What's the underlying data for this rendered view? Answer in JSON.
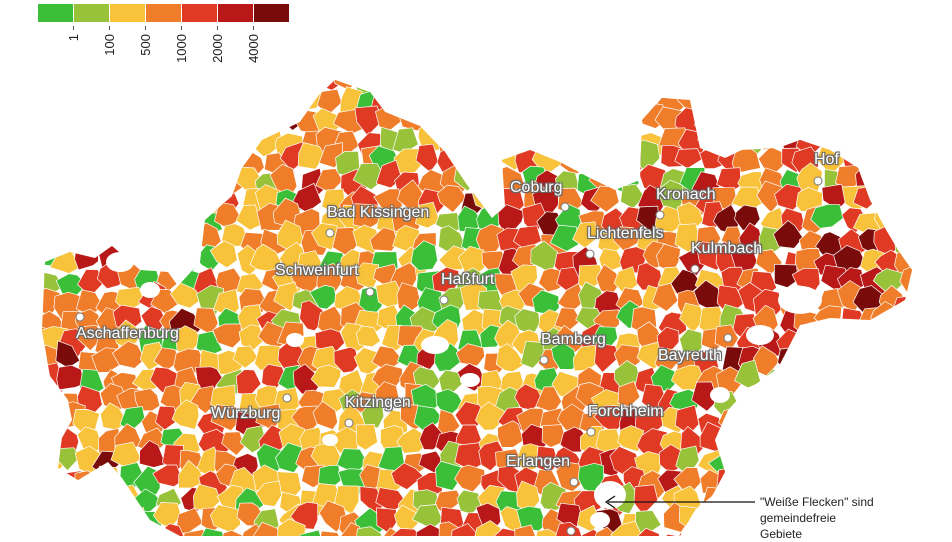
{
  "legend": {
    "items": [
      {
        "color": "#3cbf38",
        "label": "1"
      },
      {
        "color": "#97c23a",
        "label": "100"
      },
      {
        "color": "#f8c23a",
        "label": "500"
      },
      {
        "color": "#ef7d2a",
        "label": "1000"
      },
      {
        "color": "#e03a25",
        "label": "2000"
      },
      {
        "color": "#b81818",
        "label": "4000"
      },
      {
        "color": "#7a0b0b",
        "label": ""
      }
    ]
  },
  "cities": [
    {
      "name": "Hof"
    },
    {
      "name": "Coburg"
    },
    {
      "name": "Kronach"
    },
    {
      "name": "Bad Kissingen"
    },
    {
      "name": "Lichtenfels"
    },
    {
      "name": "Kulmbach"
    },
    {
      "name": "Schweinfurt"
    },
    {
      "name": "Haßfurt"
    },
    {
      "name": "Aschaffenburg"
    },
    {
      "name": "Bamberg"
    },
    {
      "name": "Bayreuth"
    },
    {
      "name": "Kitzingen"
    },
    {
      "name": "Würzburg"
    },
    {
      "name": "Forchheim"
    },
    {
      "name": "Erlangen"
    }
  ],
  "annotation": {
    "line1": "\"Weiße Flecken\" sind",
    "line2": "gemeindefreie",
    "line3": "Gebiete"
  }
}
